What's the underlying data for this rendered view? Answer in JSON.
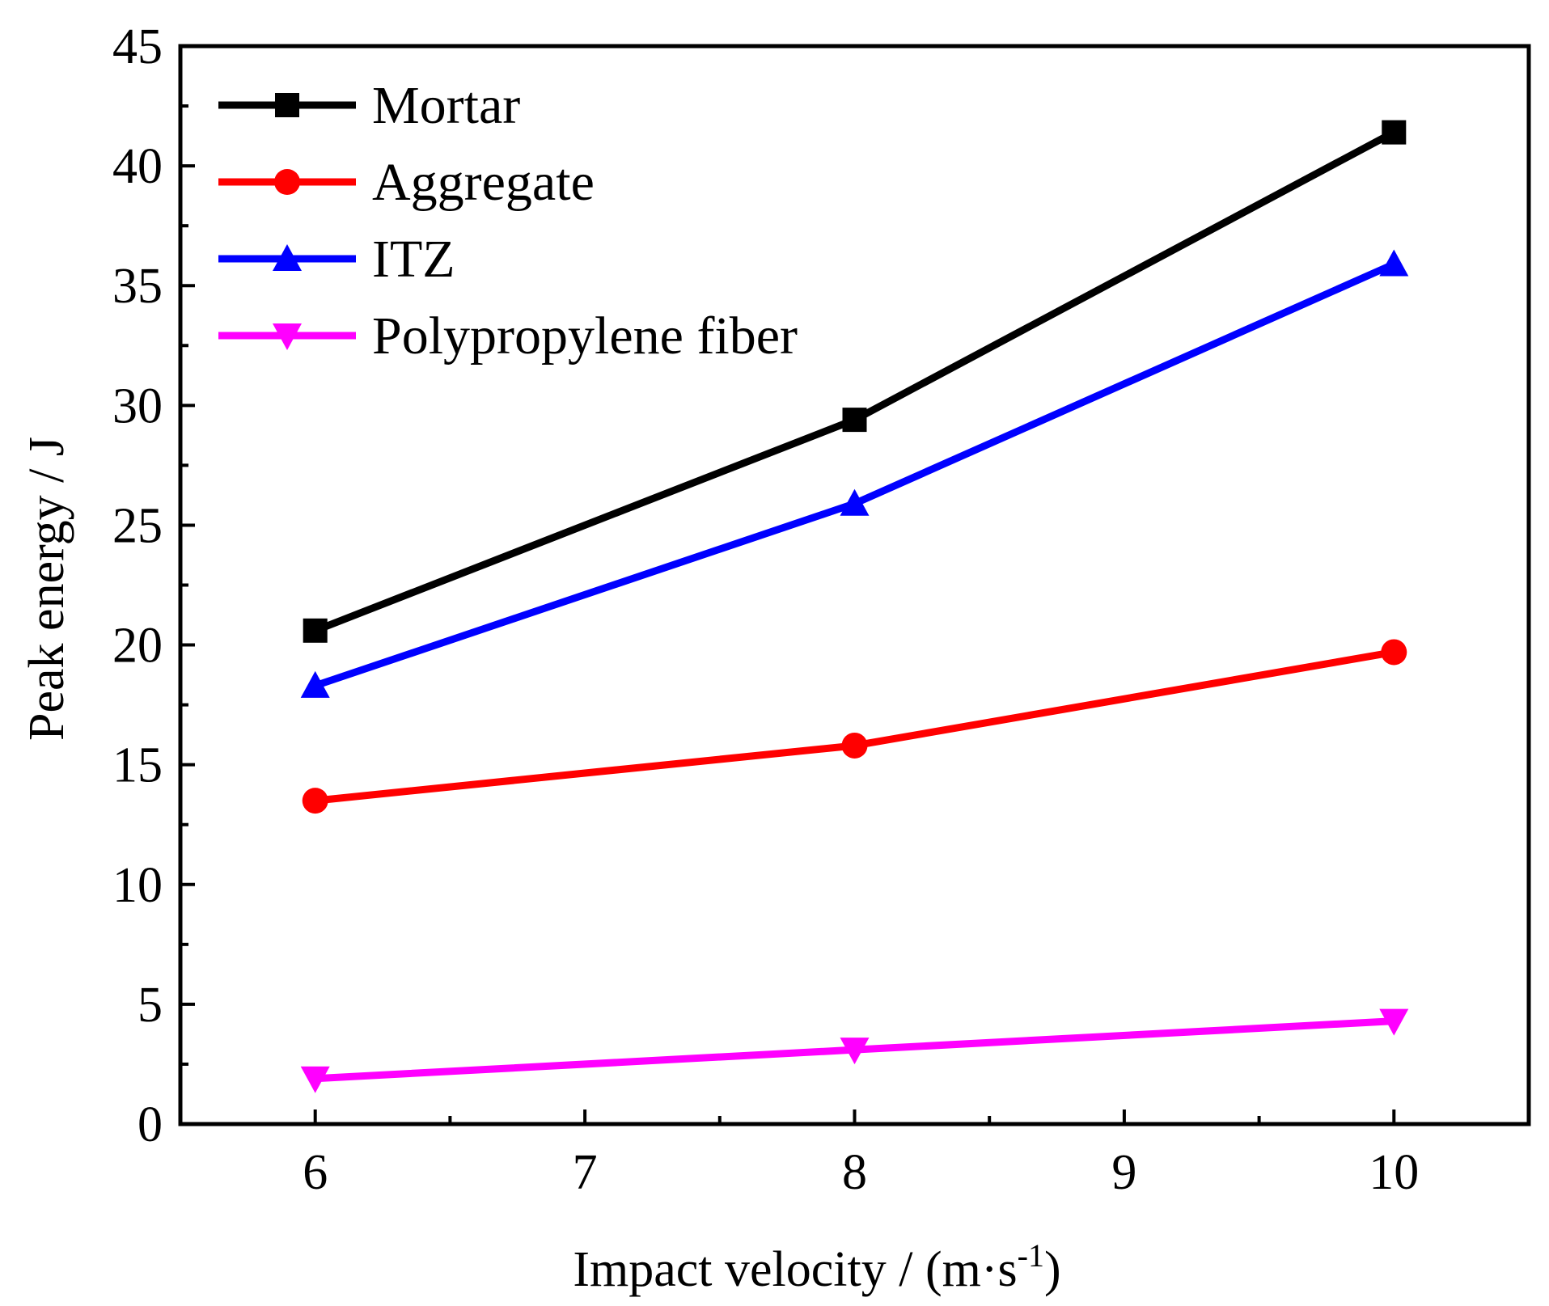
{
  "chart_data": {
    "type": "line",
    "title": "",
    "xlabel": "Impact velocity /  (m·s",
    "xlabel_sup": "-1",
    "xlabel_close": ")",
    "ylabel": "Peak energy / J",
    "xlim": [
      5.5,
      10.5
    ],
    "ylim": [
      0,
      45
    ],
    "xticks": [
      6,
      7,
      8,
      9,
      10
    ],
    "yticks": [
      0,
      5,
      10,
      15,
      20,
      25,
      30,
      35,
      40,
      45
    ],
    "x": [
      6,
      8,
      10
    ],
    "legend_position": "top-left",
    "grid": false,
    "series": [
      {
        "name": "Mortar",
        "color": "#000000",
        "marker": "square",
        "values": [
          20.6,
          29.4,
          41.4
        ]
      },
      {
        "name": "Aggregate",
        "color": "#ff0000",
        "marker": "circle",
        "values": [
          13.5,
          15.8,
          19.7
        ]
      },
      {
        "name": "ITZ",
        "color": "#0000ff",
        "marker": "triangle-up",
        "values": [
          18.3,
          25.9,
          35.9
        ]
      },
      {
        "name": "Polypropylene fiber",
        "color": "#ff00ff",
        "marker": "triangle-down",
        "values": [
          1.9,
          3.1,
          4.3
        ]
      }
    ]
  }
}
